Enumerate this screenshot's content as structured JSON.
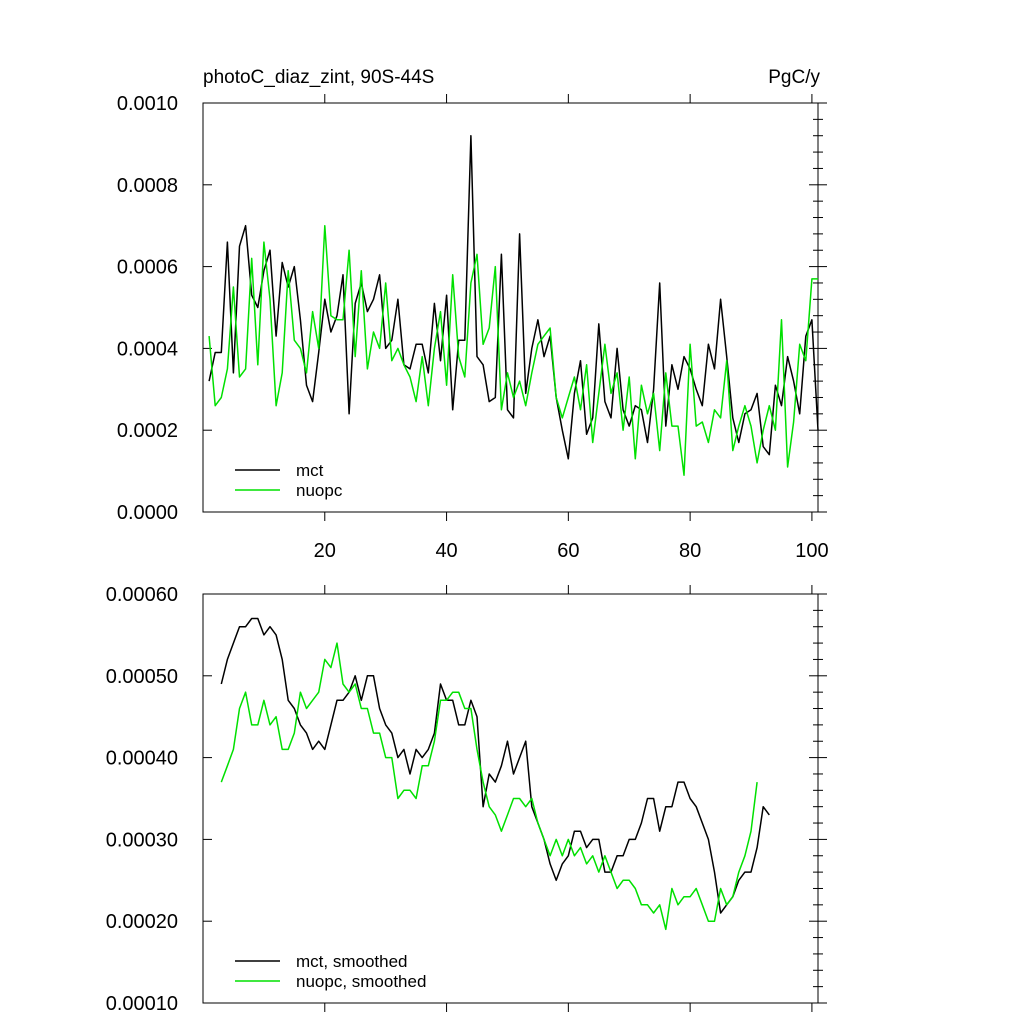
{
  "chart_data": [
    {
      "type": "line",
      "title": "photoC_diaz_zint, 90S-44S",
      "units": "PgC/y",
      "ylim": [
        0,
        0.001
      ],
      "xlim": [
        0,
        101
      ],
      "yticks": [
        "0.0000",
        "0.0002",
        "0.0004",
        "0.0006",
        "0.0008",
        "0.0010"
      ],
      "xticks": [
        "20",
        "40",
        "60",
        "80",
        "100"
      ],
      "legend_position": "bottom-left",
      "series": [
        {
          "name": "mct",
          "color": "#000000",
          "x_start": 1,
          "values": [
            0.00032,
            0.00039,
            0.00039,
            0.00066,
            0.00034,
            0.00065,
            0.0007,
            0.00053,
            0.0005,
            0.00059,
            0.00064,
            0.00043,
            0.00061,
            0.00055,
            0.0006,
            0.00047,
            0.00031,
            0.00027,
            0.00039,
            0.00052,
            0.00044,
            0.00048,
            0.00058,
            0.00024,
            0.00051,
            0.00056,
            0.00049,
            0.00052,
            0.00058,
            0.0004,
            0.00042,
            0.00052,
            0.00036,
            0.00035,
            0.00041,
            0.00041,
            0.00034,
            0.00051,
            0.00037,
            0.00053,
            0.00025,
            0.00042,
            0.00042,
            0.00092,
            0.00038,
            0.00036,
            0.00027,
            0.00028,
            0.00063,
            0.00025,
            0.00023,
            0.00068,
            0.00029,
            0.0004,
            0.00047,
            0.00038,
            0.00043,
            0.00028,
            0.0002,
            0.00013,
            0.00029,
            0.00037,
            0.00019,
            0.00023,
            0.00046,
            0.00027,
            0.00023,
            0.0004,
            0.00025,
            0.00021,
            0.00026,
            0.00025,
            0.00017,
            0.0003,
            0.00056,
            0.00021,
            0.00036,
            0.0003,
            0.00038,
            0.00035,
            0.0003,
            0.00026,
            0.00041,
            0.00035,
            0.00052,
            0.00038,
            0.00023,
            0.00017,
            0.00024,
            0.00025,
            0.00029,
            0.00016,
            0.00014,
            0.00031,
            0.00026,
            0.00038,
            0.00032,
            0.00024,
            0.00043,
            0.00047,
            0.0002
          ]
        },
        {
          "name": "nuopc",
          "color": "#00e000",
          "x_start": 1,
          "values": [
            0.00043,
            0.00026,
            0.00028,
            0.00035,
            0.00055,
            0.00033,
            0.00035,
            0.00062,
            0.00036,
            0.00066,
            0.00052,
            0.00026,
            0.00034,
            0.00059,
            0.00042,
            0.0004,
            0.00034,
            0.00049,
            0.0004,
            0.0007,
            0.00048,
            0.00047,
            0.00047,
            0.00064,
            0.00038,
            0.00059,
            0.00035,
            0.00044,
            0.0004,
            0.00056,
            0.00037,
            0.0004,
            0.00036,
            0.00033,
            0.00027,
            0.00038,
            0.00026,
            0.0004,
            0.00049,
            0.00031,
            0.00058,
            0.00038,
            0.00033,
            0.00056,
            0.00063,
            0.00041,
            0.00045,
            0.0006,
            0.00025,
            0.00034,
            0.00028,
            0.00032,
            0.00026,
            0.00034,
            0.00041,
            0.00043,
            0.00045,
            0.00028,
            0.00023,
            0.00028,
            0.00033,
            0.00025,
            0.00036,
            0.00017,
            0.00029,
            0.00041,
            0.00029,
            0.00034,
            0.0002,
            0.00033,
            0.00013,
            0.00031,
            0.00024,
            0.00029,
            0.00015,
            0.00034,
            0.00021,
            0.00021,
            9e-05,
            0.00041,
            0.00021,
            0.00022,
            0.00017,
            0.00025,
            0.00023,
            0.00037,
            0.00015,
            0.00021,
            0.00026,
            0.00021,
            0.00012,
            0.0002,
            0.00026,
            0.0002,
            0.00047,
            0.00011,
            0.00022,
            0.00041,
            0.00037,
            0.00057,
            0.00057
          ]
        }
      ]
    },
    {
      "type": "line",
      "ylim": [
        0.0001,
        0.0006
      ],
      "xlim": [
        0,
        101
      ],
      "yticks": [
        "0.00010",
        "0.00020",
        "0.00030",
        "0.00040",
        "0.00050",
        "0.00060"
      ],
      "legend_position": "bottom-left",
      "series": [
        {
          "name": "mct, smoothed",
          "color": "#000000",
          "x_start": 3,
          "values": [
            0.00049,
            0.00052,
            0.00054,
            0.00056,
            0.00056,
            0.00057,
            0.00057,
            0.00055,
            0.00056,
            0.00055,
            0.00052,
            0.00047,
            0.00046,
            0.00044,
            0.00043,
            0.00041,
            0.00042,
            0.00041,
            0.00044,
            0.00047,
            0.00047,
            0.00048,
            0.0005,
            0.00047,
            0.0005,
            0.0005,
            0.00046,
            0.00044,
            0.00043,
            0.0004,
            0.00041,
            0.00038,
            0.00041,
            0.0004,
            0.00041,
            0.00043,
            0.00049,
            0.00047,
            0.00047,
            0.00044,
            0.00044,
            0.00047,
            0.00045,
            0.00034,
            0.00038,
            0.00037,
            0.00039,
            0.00042,
            0.00038,
            0.0004,
            0.00042,
            0.00034,
            0.00032,
            0.0003,
            0.00027,
            0.00025,
            0.00027,
            0.00028,
            0.00031,
            0.00031,
            0.00029,
            0.0003,
            0.0003,
            0.00026,
            0.00026,
            0.00028,
            0.00028,
            0.0003,
            0.0003,
            0.00032,
            0.00035,
            0.00035,
            0.00031,
            0.00034,
            0.00034,
            0.00037,
            0.00037,
            0.00035,
            0.00034,
            0.00032,
            0.0003,
            0.00026,
            0.00021,
            0.00022,
            0.00023,
            0.00025,
            0.00026,
            0.00026,
            0.00029,
            0.00034,
            0.00033
          ]
        },
        {
          "name": "nuopc, smoothed",
          "color": "#00e000",
          "x_start": 3,
          "values": [
            0.00037,
            0.00039,
            0.00041,
            0.00046,
            0.00048,
            0.00044,
            0.00044,
            0.00047,
            0.00044,
            0.00045,
            0.00041,
            0.00041,
            0.00043,
            0.00048,
            0.00046,
            0.00047,
            0.00048,
            0.00052,
            0.00051,
            0.00054,
            0.00049,
            0.00048,
            0.00049,
            0.00046,
            0.00046,
            0.00043,
            0.00043,
            0.0004,
            0.0004,
            0.00035,
            0.00036,
            0.00036,
            0.00035,
            0.00039,
            0.00039,
            0.00042,
            0.00047,
            0.00047,
            0.00048,
            0.00048,
            0.00046,
            0.00046,
            0.00041,
            0.00037,
            0.00034,
            0.00033,
            0.00031,
            0.00033,
            0.00035,
            0.00035,
            0.00034,
            0.00035,
            0.00032,
            0.0003,
            0.00028,
            0.0003,
            0.00028,
            0.0003,
            0.00028,
            0.00029,
            0.00027,
            0.00028,
            0.00026,
            0.00028,
            0.00026,
            0.00024,
            0.00025,
            0.00025,
            0.00024,
            0.00022,
            0.00022,
            0.00021,
            0.00022,
            0.00019,
            0.00024,
            0.00022,
            0.00023,
            0.00023,
            0.00024,
            0.00022,
            0.0002,
            0.0002,
            0.00024,
            0.00022,
            0.00023,
            0.00026,
            0.00028,
            0.00031,
            0.00037
          ]
        }
      ]
    }
  ]
}
